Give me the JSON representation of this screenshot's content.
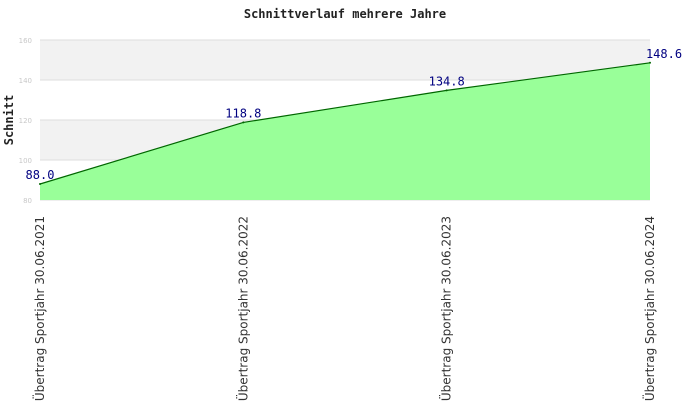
{
  "chart_data": {
    "type": "area",
    "title": "Schnittverlauf mehrere Jahre",
    "xlabel": "",
    "ylabel": "Schnitt",
    "categories": [
      "Übertrag Sportjahr 30.06.2021",
      "Übertrag Sportjahr 30.06.2022",
      "Übertrag Sportjahr 30.06.2023",
      "Übertrag Sportjahr 30.06.2024"
    ],
    "values": [
      88.0,
      118.8,
      134.8,
      148.6
    ],
    "data_labels": [
      "88.0",
      "118.8",
      "134.8",
      "148.6"
    ],
    "yticks": [
      80,
      100,
      120,
      140,
      160
    ],
    "ylim": [
      80,
      160
    ],
    "grid": true,
    "colors": {
      "fill": "#99ff99",
      "line": "#006600",
      "band": "#f2f2f2",
      "grid": "#dddddd",
      "label": "#000080"
    }
  }
}
